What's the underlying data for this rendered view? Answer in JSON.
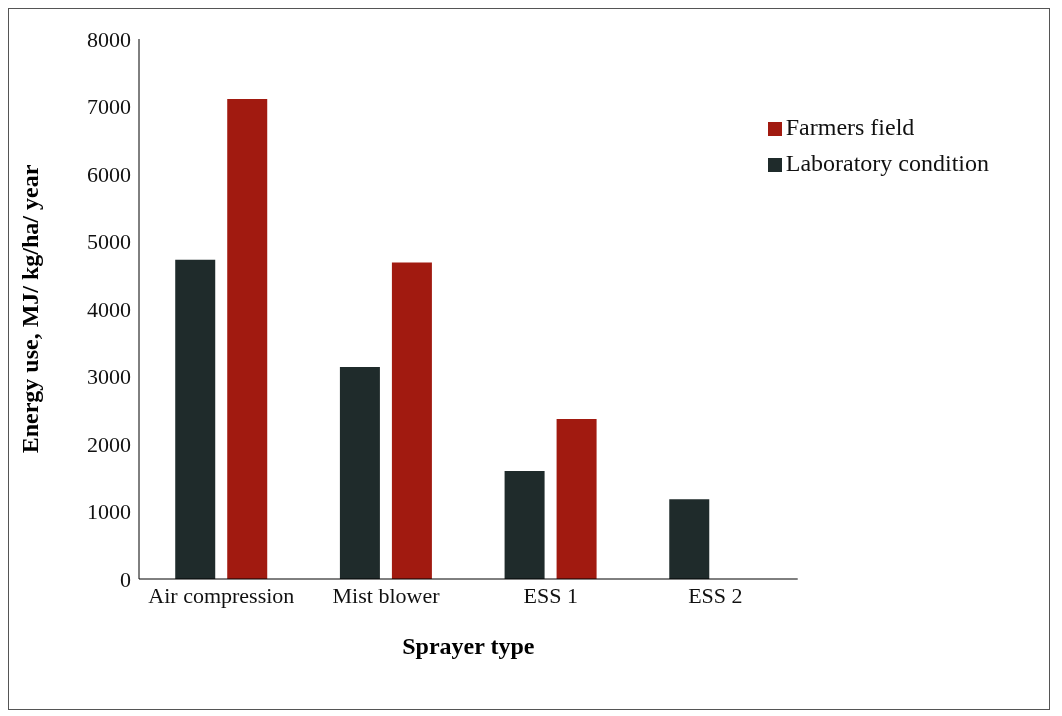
{
  "chart_data": {
    "type": "bar",
    "xlabel": "Sprayer type",
    "ylabel": "Energy use, MJ/ kg/ha/ year",
    "categories": [
      "Air compression",
      "Mist blower",
      "ESS 1",
      "ESS 2"
    ],
    "series": [
      {
        "name": "Laboratory condition",
        "color": "#1f2b2b",
        "values": [
          4730,
          3140,
          1600,
          1180
        ]
      },
      {
        "name": "Farmers field",
        "color": "#a11a10",
        "values": [
          7110,
          4690,
          2370,
          null
        ]
      }
    ],
    "ylim": [
      0,
      8000
    ],
    "yticks": [
      0,
      1000,
      2000,
      3000,
      4000,
      5000,
      6000,
      7000,
      8000
    ],
    "grid": false,
    "legend": "top right"
  }
}
